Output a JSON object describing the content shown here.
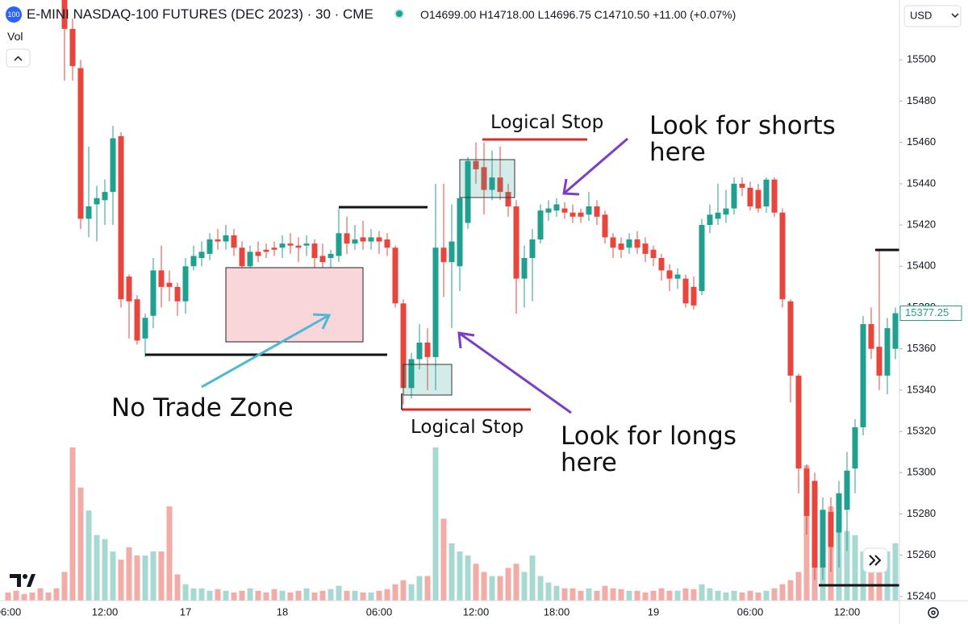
{
  "chart_data": {
    "type": "candlestick",
    "logo": "100",
    "title": "E-MINI NASDAQ-100 FUTURES (DEC 2023) · 30 · CME",
    "ohlc_readout": "O14699.00 H14718.00 L14696.75 C14710.50 +11.00 (+0.07%)",
    "volume_label": "Vol",
    "currency": "USD",
    "last_price": 15377.25,
    "up_color": "#22a08f",
    "down_color": "#e8463d",
    "volume_up_color": "#a8d8d2",
    "volume_down_color": "#f2aca7",
    "grid": false,
    "ylim": [
      15238,
      15529
    ],
    "yticks": [
      15240,
      15260,
      15280,
      15300,
      15320,
      15340,
      15360,
      15380,
      15400,
      15420,
      15440,
      15460,
      15480,
      15500
    ],
    "categories": [
      "06:00",
      null,
      null,
      null,
      null,
      null,
      null,
      null,
      null,
      null,
      null,
      null,
      "12:00",
      null,
      null,
      null,
      null,
      null,
      null,
      null,
      null,
      null,
      "17",
      null,
      null,
      null,
      null,
      null,
      null,
      null,
      null,
      null,
      null,
      null,
      "18",
      null,
      null,
      null,
      null,
      null,
      null,
      null,
      null,
      null,
      null,
      null,
      "06:00",
      null,
      null,
      null,
      null,
      null,
      null,
      null,
      null,
      null,
      null,
      null,
      "12:00",
      null,
      null,
      null,
      null,
      null,
      null,
      null,
      null,
      null,
      "18:00",
      null,
      null,
      null,
      null,
      null,
      null,
      null,
      null,
      null,
      null,
      null,
      "19",
      null,
      null,
      null,
      null,
      null,
      null,
      null,
      null,
      null,
      null,
      null,
      "06:00",
      null,
      null,
      null,
      null,
      null,
      null,
      null,
      null,
      null,
      null,
      null,
      "12:00",
      null,
      null,
      null,
      null,
      null,
      null
    ],
    "open": [
      null,
      null,
      null,
      null,
      null,
      null,
      null,
      15535,
      15515,
      15496,
      15423,
      15430,
      15432,
      15436,
      15463,
      15395,
      15384,
      15365,
      15376,
      15398,
      15392,
      15390,
      15383,
      15400,
      15404,
      15406,
      15413,
      15412,
      15415,
      15409,
      15400,
      15407,
      15408,
      15409,
      15409,
      15411,
      15410,
      15410,
      15411,
      15405,
      15404,
      15405,
      15416,
      15411,
      15414,
      15412,
      15414,
      15413,
      15409,
      15382,
      15341,
      15355,
      15363,
      15356,
      15409,
      15402,
      15400,
      15421,
      15451,
      15448,
      15437,
      15443,
      15436,
      15429,
      15394,
      15404,
      15413,
      15426,
      15427,
      15428,
      15426,
      15426,
      15425,
      15429,
      15425,
      15414,
      15411,
      15409,
      15413,
      15411,
      15408,
      15404,
      15398,
      15394,
      15394,
      15390,
      15388,
      15420,
      15423,
      15425,
      15428,
      15440,
      15438,
      15437,
      15429,
      15442,
      15426,
      15383,
      15347,
      15302,
      15296,
      15254,
      15281,
      15271,
      15282,
      15302,
      15322,
      15372,
      15361,
      15347,
      15360
    ],
    "high": [
      null,
      null,
      null,
      null,
      null,
      null,
      null,
      15540,
      15520,
      15500,
      15458,
      15439,
      15442,
      15468,
      15465,
      15396,
      15386,
      15377,
      15404,
      15410,
      15398,
      15392,
      15404,
      15410,
      15412,
      15416,
      15418,
      15420,
      15418,
      15412,
      15410,
      15412,
      15411,
      15412,
      15415,
      15416,
      15414,
      15415,
      15413,
      15411,
      15408,
      15428,
      15424,
      15420,
      15422,
      15418,
      15417,
      15416,
      15410,
      15384,
      15358,
      15372,
      15370,
      15440,
      15440,
      15430,
      15440,
      15453,
      15460,
      15460,
      15456,
      15458,
      15440,
      15432,
      15410,
      15418,
      15430,
      15432,
      15433,
      15431,
      15430,
      15428,
      15436,
      15432,
      15427,
      15416,
      15414,
      15416,
      15417,
      15414,
      15410,
      15406,
      15401,
      15399,
      15396,
      15395,
      15423,
      15430,
      15440,
      15437,
      15443,
      15443,
      15441,
      15440,
      15443,
      15443,
      15428,
      15384,
      15348,
      15304,
      15300,
      15288,
      15288,
      15296,
      15310,
      15326,
      15376,
      15380,
      15408,
      15375,
      15380
    ],
    "low": [
      null,
      null,
      null,
      null,
      null,
      null,
      null,
      15490,
      15490,
      15418,
      15414,
      15412,
      15420,
      15420,
      15380,
      15365,
      15362,
      15356,
      15370,
      15380,
      15383,
      15376,
      15377,
      15398,
      15400,
      15403,
      15408,
      15408,
      15405,
      15396,
      15398,
      15402,
      15404,
      15405,
      15404,
      15406,
      15402,
      15405,
      15398,
      15396,
      15392,
      15402,
      15406,
      15408,
      15408,
      15408,
      15406,
      15405,
      15380,
      15333,
      15336,
      15350,
      15340,
      15340,
      15385,
      15370,
      15388,
      15418,
      15440,
      15425,
      15432,
      15432,
      15424,
      15377,
      15380,
      15383,
      15411,
      15422,
      15424,
      15423,
      15421,
      15421,
      15422,
      15420,
      15411,
      15404,
      15404,
      15406,
      15406,
      15402,
      15400,
      15393,
      15388,
      15389,
      15380,
      15379,
      15386,
      15416,
      15420,
      15421,
      15425,
      15434,
      15427,
      15426,
      15426,
      15424,
      15380,
      15334,
      15290,
      15270,
      15248,
      15248,
      15252,
      15254,
      15262,
      15290,
      15318,
      15355,
      15340,
      15338,
      15355
    ],
    "close": [
      null,
      null,
      null,
      null,
      null,
      null,
      null,
      15515,
      15497,
      15423,
      15429,
      15433,
      15436,
      15462,
      15384,
      15383,
      15364,
      15375,
      15398,
      15390,
      15390,
      15383,
      15400,
      15405,
      15407,
      15413,
      15412,
      15415,
      15409,
      15400,
      15407,
      15405,
      15407,
      15408,
      15411,
      15410,
      15409,
      15411,
      15404,
      15402,
      15406,
      15416,
      15411,
      15413,
      15412,
      15414,
      15412,
      15409,
      15382,
      15341,
      15355,
      15363,
      15356,
      15409,
      15402,
      15412,
      15433,
      15451,
      15447,
      15437,
      15443,
      15436,
      15429,
      15394,
      15404,
      15413,
      15427,
      15428,
      15430,
      15426,
      15424,
      15424,
      15429,
      15424,
      15414,
      15409,
      15408,
      15413,
      15409,
      15406,
      15404,
      15398,
      15394,
      15396,
      15382,
      15381,
      15420,
      15425,
      15426,
      15428,
      15440,
      15438,
      15429,
      15428,
      15442,
      15426,
      15384,
      15347,
      15302,
      15279,
      15254,
      15282,
      15264,
      15290,
      15301,
      15322,
      15372,
      15360,
      15347,
      15370,
      15377.25
    ],
    "volume": [
      10,
      12,
      8,
      10,
      15,
      10,
      15,
      35,
      187,
      138,
      110,
      80,
      75,
      60,
      50,
      65,
      55,
      55,
      60,
      60,
      115,
      32,
      20,
      15,
      15,
      12,
      14,
      12,
      10,
      12,
      15,
      12,
      10,
      14,
      12,
      10,
      12,
      15,
      10,
      12,
      14,
      18,
      12,
      12,
      10,
      10,
      12,
      14,
      20,
      25,
      20,
      30,
      30,
      187,
      100,
      70,
      60,
      55,
      45,
      35,
      30,
      30,
      40,
      45,
      35,
      55,
      30,
      22,
      18,
      15,
      15,
      12,
      15,
      12,
      18,
      15,
      14,
      12,
      12,
      10,
      12,
      15,
      12,
      12,
      15,
      14,
      20,
      15,
      12,
      10,
      12,
      10,
      12,
      10,
      12,
      15,
      20,
      25,
      35,
      165,
      130,
      110,
      115,
      115,
      85,
      80,
      60,
      55,
      45,
      60,
      70
    ],
    "annotations": [
      "Logical Stop",
      "Look for shorts here",
      "No Trade Zone",
      "Logical Stop",
      "Look for longs here"
    ]
  }
}
